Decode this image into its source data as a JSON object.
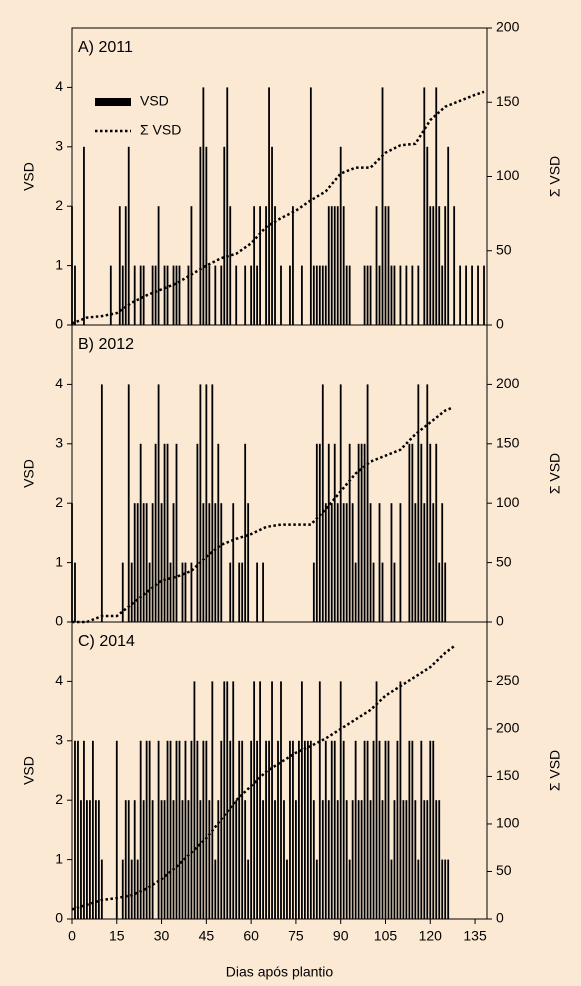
{
  "chart_data": [
    {
      "type": "bar",
      "title": "A) 2011",
      "ylabel": "VSD",
      "y2label": "Σ VSD",
      "xlim": [
        0,
        139
      ],
      "ylim": [
        0,
        5
      ],
      "yticks": [
        0,
        1,
        2,
        3,
        4
      ],
      "y2lim": [
        0,
        200
      ],
      "y2ticks": [
        0,
        50,
        100,
        150,
        200
      ],
      "series": [
        {
          "name": "VSD",
          "color": "#000000",
          "x": [
            0,
            1,
            4,
            13,
            16,
            17,
            18,
            19,
            21,
            23,
            24,
            27,
            28,
            29,
            31,
            32,
            34,
            35,
            36,
            39,
            40,
            43,
            44,
            45,
            46,
            48,
            50,
            51,
            52,
            53,
            55,
            58,
            60,
            61,
            62,
            63,
            65,
            66,
            67,
            68,
            70,
            73,
            74,
            77,
            80,
            81,
            82,
            83,
            84,
            85,
            86,
            87,
            88,
            89,
            90,
            91,
            92,
            93,
            98,
            99,
            100,
            102,
            103,
            104,
            105,
            106,
            107,
            108,
            110,
            112,
            114,
            116,
            118,
            119,
            120,
            121,
            122,
            123,
            124,
            125,
            126,
            128,
            130,
            132,
            134,
            136,
            138
          ],
          "values": [
            2,
            1,
            3,
            1,
            2,
            1,
            2,
            3,
            1,
            1,
            1,
            1,
            1,
            2,
            1,
            1,
            1,
            1,
            1,
            1,
            2,
            3,
            4,
            3,
            1,
            1,
            1,
            3,
            4,
            2,
            1,
            1,
            1,
            2,
            1,
            2,
            2,
            4,
            3,
            2,
            1,
            1,
            2,
            1,
            4,
            1,
            1,
            1,
            1,
            1,
            2,
            2,
            2,
            2,
            3,
            2,
            1,
            1,
            1,
            1,
            1,
            2,
            1,
            4,
            2,
            2,
            1,
            1,
            1,
            1,
            1,
            1,
            4,
            3,
            2,
            2,
            4,
            2,
            1,
            2,
            3,
            2,
            1,
            1,
            1,
            1,
            1
          ]
        },
        {
          "name": "Σ VSD",
          "type": "line",
          "axis": "y2",
          "color": "#000000",
          "x": [
            0,
            5,
            10,
            15,
            20,
            25,
            30,
            35,
            40,
            45,
            50,
            55,
            60,
            65,
            70,
            75,
            80,
            85,
            90,
            95,
            100,
            105,
            110,
            115,
            120,
            125,
            130,
            135,
            138
          ],
          "values": [
            1,
            5,
            6,
            8,
            15,
            20,
            24,
            28,
            34,
            40,
            45,
            48,
            55,
            66,
            72,
            77,
            84,
            90,
            102,
            106,
            106,
            116,
            121,
            122,
            138,
            147,
            151,
            155,
            157
          ]
        }
      ]
    },
    {
      "type": "bar",
      "title": "B) 2012",
      "ylabel": "VSD",
      "y2label": "Σ VSD",
      "xlim": [
        0,
        139
      ],
      "ylim": [
        0,
        5
      ],
      "yticks": [
        0,
        1,
        2,
        3,
        4
      ],
      "y2lim": [
        0,
        250
      ],
      "y2ticks": [
        0,
        50,
        100,
        150,
        200
      ],
      "series": [
        {
          "color": "#000000",
          "x": [
            0,
            1,
            10,
            17,
            19,
            20,
            21,
            22,
            23,
            24,
            25,
            26,
            27,
            28,
            29,
            30,
            31,
            32,
            33,
            34,
            35,
            37,
            38,
            40,
            42,
            43,
            44,
            45,
            46,
            47,
            48,
            49,
            50,
            53,
            54,
            56,
            57,
            58,
            59,
            62,
            64,
            81,
            82,
            83,
            84,
            85,
            86,
            87,
            88,
            89,
            90,
            91,
            92,
            93,
            94,
            95,
            96,
            97,
            98,
            99,
            100,
            101,
            103,
            104,
            107,
            108,
            110,
            113,
            114,
            115,
            116,
            117,
            118,
            119,
            120,
            121,
            122,
            123,
            124,
            125
          ],
          "values": [
            2,
            1,
            4,
            1,
            4,
            1,
            2,
            2,
            3,
            2,
            2,
            1,
            2,
            3,
            4,
            2,
            3,
            3,
            1,
            2,
            3,
            1,
            1,
            1,
            3,
            4,
            2,
            4,
            2,
            4,
            2,
            3,
            2,
            1,
            2,
            1,
            1,
            3,
            2,
            1,
            1,
            1,
            3,
            3,
            4,
            2,
            3,
            2,
            3,
            2,
            4,
            2,
            2,
            3,
            2,
            1,
            3,
            3,
            3,
            4,
            2,
            1,
            2,
            1,
            2,
            1,
            2,
            3,
            3,
            2,
            4,
            3,
            2,
            4,
            3,
            2,
            3,
            1,
            2,
            1
          ]
        },
        {
          "type": "line",
          "axis": "y2",
          "color": "#000000",
          "x": [
            0,
            5,
            10,
            15,
            20,
            25,
            30,
            35,
            40,
            45,
            50,
            55,
            60,
            65,
            70,
            75,
            80,
            85,
            90,
            95,
            100,
            105,
            110,
            115,
            120,
            125,
            127
          ],
          "values": [
            0,
            0,
            5,
            5,
            15,
            25,
            35,
            38,
            43,
            55,
            65,
            70,
            74,
            80,
            82,
            82,
            82,
            95,
            110,
            125,
            135,
            140,
            145,
            158,
            168,
            178,
            180
          ]
        }
      ]
    },
    {
      "type": "bar",
      "title": "C) 2014",
      "ylabel": "VSD",
      "y2label": "Σ VSD",
      "xlabel": "Dias após plantio",
      "xlim": [
        0,
        139
      ],
      "xticks": [
        0,
        15,
        30,
        45,
        60,
        75,
        90,
        105,
        120,
        135
      ],
      "ylim": [
        0,
        5
      ],
      "yticks": [
        0,
        1,
        2,
        3,
        4
      ],
      "y2lim": [
        0,
        312.5
      ],
      "y2ticks": [
        0,
        50,
        100,
        150,
        200,
        250
      ],
      "series": [
        {
          "color": "#000000",
          "x": [
            1,
            2,
            3,
            4,
            5,
            6,
            7,
            8,
            9,
            10,
            15,
            17,
            18,
            19,
            20,
            21,
            22,
            23,
            24,
            25,
            26,
            27,
            29,
            30,
            31,
            32,
            33,
            34,
            35,
            36,
            37,
            38,
            39,
            40,
            41,
            42,
            43,
            44,
            45,
            46,
            47,
            48,
            49,
            50,
            51,
            52,
            53,
            54,
            55,
            56,
            57,
            58,
            59,
            60,
            61,
            62,
            63,
            64,
            65,
            66,
            67,
            68,
            69,
            70,
            71,
            72,
            73,
            74,
            75,
            76,
            77,
            78,
            79,
            80,
            81,
            82,
            83,
            84,
            85,
            86,
            87,
            88,
            89,
            90,
            91,
            92,
            93,
            94,
            95,
            96,
            97,
            98,
            99,
            100,
            101,
            102,
            103,
            104,
            105,
            106,
            107,
            108,
            109,
            110,
            111,
            112,
            113,
            114,
            115,
            116,
            117,
            118,
            119,
            120,
            121,
            122,
            123,
            124,
            125,
            126
          ],
          "values": [
            3,
            3,
            2,
            3,
            2,
            2,
            3,
            2,
            2,
            1,
            3,
            1,
            2,
            2,
            1,
            2,
            1,
            3,
            2,
            3,
            3,
            2,
            3,
            2,
            2,
            3,
            3,
            2,
            3,
            3,
            2,
            3,
            2,
            3,
            4,
            3,
            2,
            3,
            3,
            2,
            4,
            1,
            2,
            3,
            4,
            4,
            3,
            4,
            2,
            3,
            3,
            2,
            1,
            3,
            4,
            3,
            4,
            2,
            3,
            3,
            4,
            2,
            3,
            4,
            2,
            1,
            3,
            3,
            2,
            3,
            4,
            3,
            3,
            3,
            2,
            1,
            4,
            2,
            3,
            2,
            3,
            3,
            2,
            4,
            3,
            2,
            1,
            2,
            3,
            2,
            2,
            3,
            3,
            2,
            3,
            4,
            3,
            2,
            3,
            3,
            1,
            2,
            3,
            4,
            2,
            2,
            3,
            3,
            2,
            1,
            3,
            2,
            2,
            3,
            3,
            2,
            2,
            1,
            1,
            1
          ]
        },
        {
          "type": "line",
          "axis": "y2",
          "color": "#000000",
          "x": [
            0,
            5,
            10,
            15,
            20,
            25,
            30,
            35,
            40,
            45,
            50,
            55,
            60,
            65,
            70,
            75,
            80,
            85,
            90,
            95,
            100,
            105,
            110,
            115,
            120,
            125,
            128
          ],
          "values": [
            10,
            15,
            20,
            22,
            25,
            32,
            42,
            55,
            70,
            85,
            105,
            125,
            140,
            155,
            165,
            175,
            182,
            190,
            200,
            210,
            220,
            235,
            245,
            255,
            265,
            280,
            287
          ]
        }
      ]
    }
  ]
}
